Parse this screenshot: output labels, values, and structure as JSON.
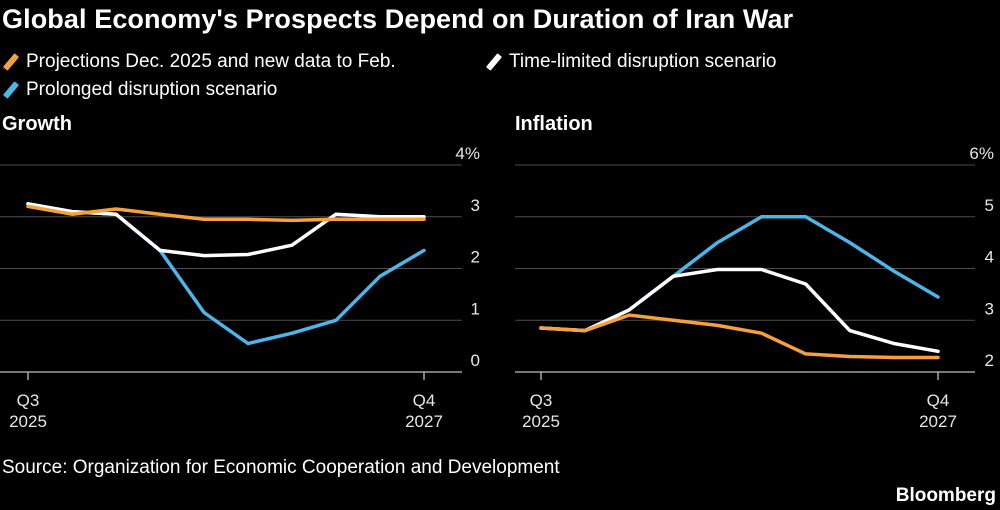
{
  "header": {
    "title": "Global Economy's Prospects Depend on Duration of Iran War"
  },
  "legend": [
    {
      "label": "Projections Dec. 2025 and new data to Feb.",
      "color": "#f7a03c"
    },
    {
      "label": "Time-limited disruption scenario",
      "color": "#ffffff"
    },
    {
      "label": "Prolonged disruption scenario",
      "color": "#4db6e8"
    }
  ],
  "footer": {
    "source": "Source: Organization for Economic Cooperation and Development",
    "brand": "Bloomberg"
  },
  "chart_data": [
    {
      "type": "line",
      "title": "Growth",
      "x": [
        0,
        1,
        2,
        3,
        4,
        5,
        6,
        7,
        8,
        9
      ],
      "x_tick_labels": [
        {
          "index": 0,
          "label": [
            "Q3",
            "2025"
          ]
        },
        {
          "index": 9,
          "label": [
            "Q4",
            "2027"
          ]
        }
      ],
      "ylim": [
        0,
        4
      ],
      "y_ticks": [
        0,
        1,
        2,
        3,
        4
      ],
      "y_tick_labels": [
        "0",
        "1",
        "2",
        "3",
        "4%"
      ],
      "grid": true,
      "series": [
        {
          "name": "Projections Dec. 2025 and new data to Feb.",
          "color": "#f7a03c",
          "values": [
            3.2,
            3.05,
            3.15,
            3.05,
            2.95,
            2.95,
            2.93,
            2.95,
            2.95,
            2.95
          ]
        },
        {
          "name": "Time-limited disruption scenario",
          "color": "#ffffff",
          "values": [
            3.25,
            3.1,
            3.05,
            2.35,
            2.25,
            2.27,
            2.45,
            3.05,
            3.0,
            3.0
          ]
        },
        {
          "name": "Prolonged disruption scenario",
          "color": "#4db6e8",
          "values": [
            3.25,
            3.1,
            3.05,
            2.35,
            1.15,
            0.55,
            0.75,
            1.0,
            1.85,
            2.35
          ]
        }
      ]
    },
    {
      "type": "line",
      "title": "Inflation",
      "x": [
        0,
        1,
        2,
        3,
        4,
        5,
        6,
        7,
        8,
        9
      ],
      "x_tick_labels": [
        {
          "index": 0,
          "label": [
            "Q3",
            "2025"
          ]
        },
        {
          "index": 9,
          "label": [
            "Q4",
            "2027"
          ]
        }
      ],
      "ylim": [
        2,
        6
      ],
      "y_ticks": [
        2,
        3,
        4,
        5,
        6
      ],
      "y_tick_labels": [
        "2",
        "3",
        "4",
        "5",
        "6%"
      ],
      "grid": true,
      "series": [
        {
          "name": "Projections Dec. 2025 and new data to Feb.",
          "color": "#f7a03c",
          "values": [
            2.85,
            2.8,
            3.1,
            3.0,
            2.9,
            2.75,
            2.35,
            2.3,
            2.28,
            2.28
          ]
        },
        {
          "name": "Time-limited disruption scenario",
          "color": "#ffffff",
          "values": [
            2.85,
            2.8,
            3.2,
            3.85,
            3.98,
            3.98,
            3.7,
            2.8,
            2.55,
            2.4
          ]
        },
        {
          "name": "Prolonged disruption scenario",
          "color": "#4db6e8",
          "values": [
            2.85,
            2.8,
            3.2,
            3.85,
            4.5,
            5.0,
            5.0,
            4.5,
            3.95,
            3.45
          ]
        }
      ]
    }
  ]
}
